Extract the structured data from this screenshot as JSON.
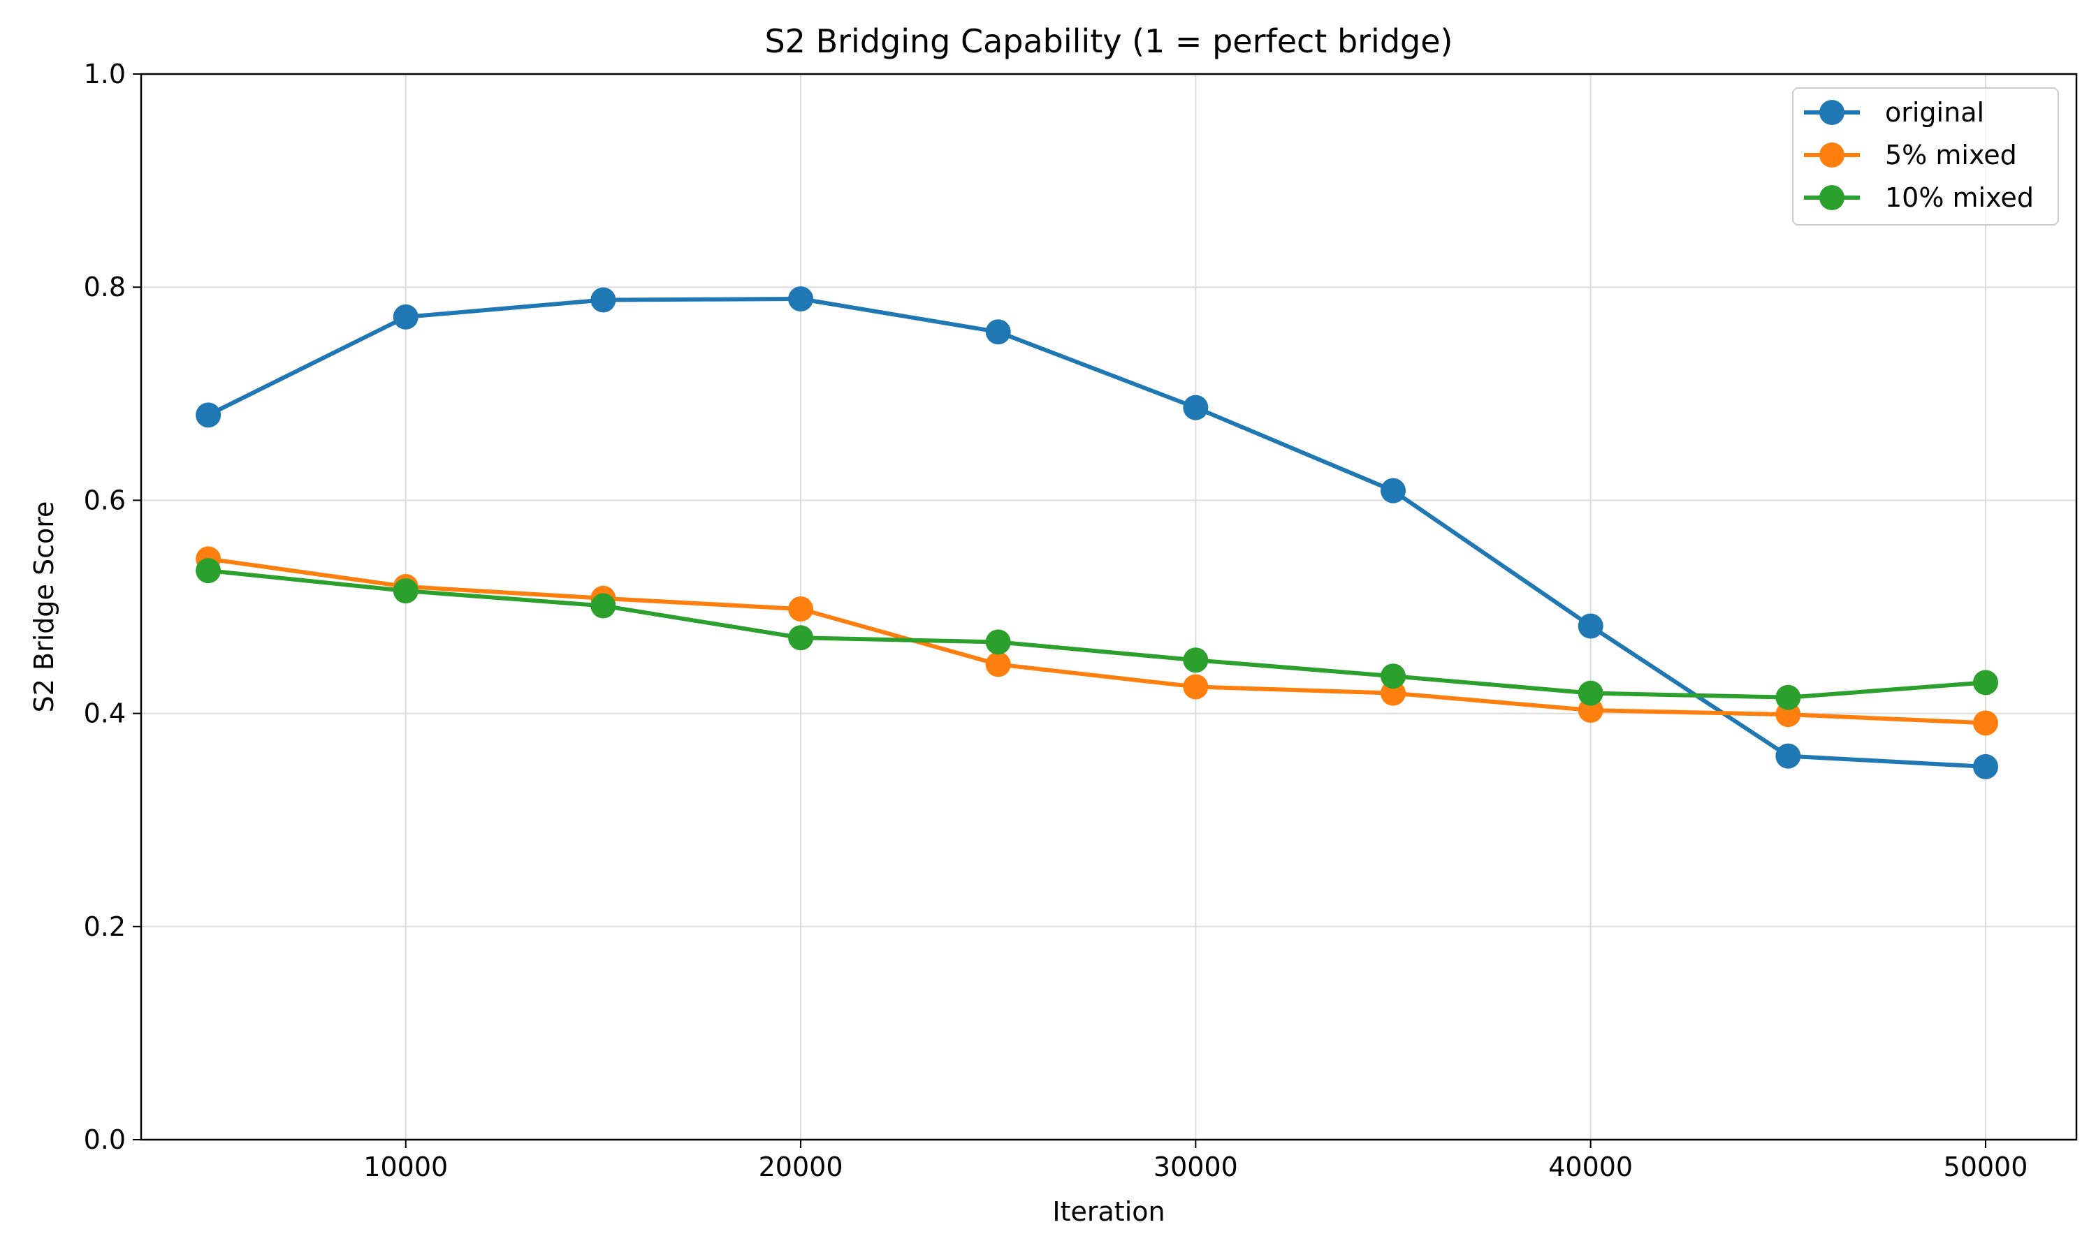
{
  "chart_data": {
    "type": "line",
    "title": "S2 Bridging Capability (1 = perfect bridge)",
    "xlabel": "Iteration",
    "ylabel": "S2 Bridge Score",
    "xlim": [
      3300,
      52300
    ],
    "ylim": [
      0,
      1.0
    ],
    "x_ticks": [
      10000,
      20000,
      30000,
      40000,
      50000
    ],
    "y_ticks": [
      0.0,
      0.2,
      0.4,
      0.6,
      0.8,
      1.0
    ],
    "x_tick_labels": [
      "10000",
      "20000",
      "30000",
      "40000",
      "50000"
    ],
    "y_tick_labels": [
      "0.0",
      "0.2",
      "0.4",
      "0.6",
      "0.8",
      "1.0"
    ],
    "grid": true,
    "legend_position": "top-right",
    "x": [
      5000,
      10000,
      15000,
      20000,
      25000,
      30000,
      35000,
      40000,
      45000,
      50000
    ],
    "series": [
      {
        "name": "original",
        "color": "#1f77b4",
        "values": [
          0.68,
          0.772,
          0.788,
          0.789,
          0.758,
          0.687,
          0.609,
          0.482,
          0.36,
          0.35
        ]
      },
      {
        "name": "5% mixed",
        "color": "#ff7f0e",
        "values": [
          0.545,
          0.519,
          0.508,
          0.498,
          0.446,
          0.425,
          0.419,
          0.403,
          0.399,
          0.391
        ]
      },
      {
        "name": "10% mixed",
        "color": "#2ca02c",
        "values": [
          0.534,
          0.515,
          0.501,
          0.471,
          0.467,
          0.45,
          0.435,
          0.419,
          0.415,
          0.429
        ]
      }
    ]
  }
}
